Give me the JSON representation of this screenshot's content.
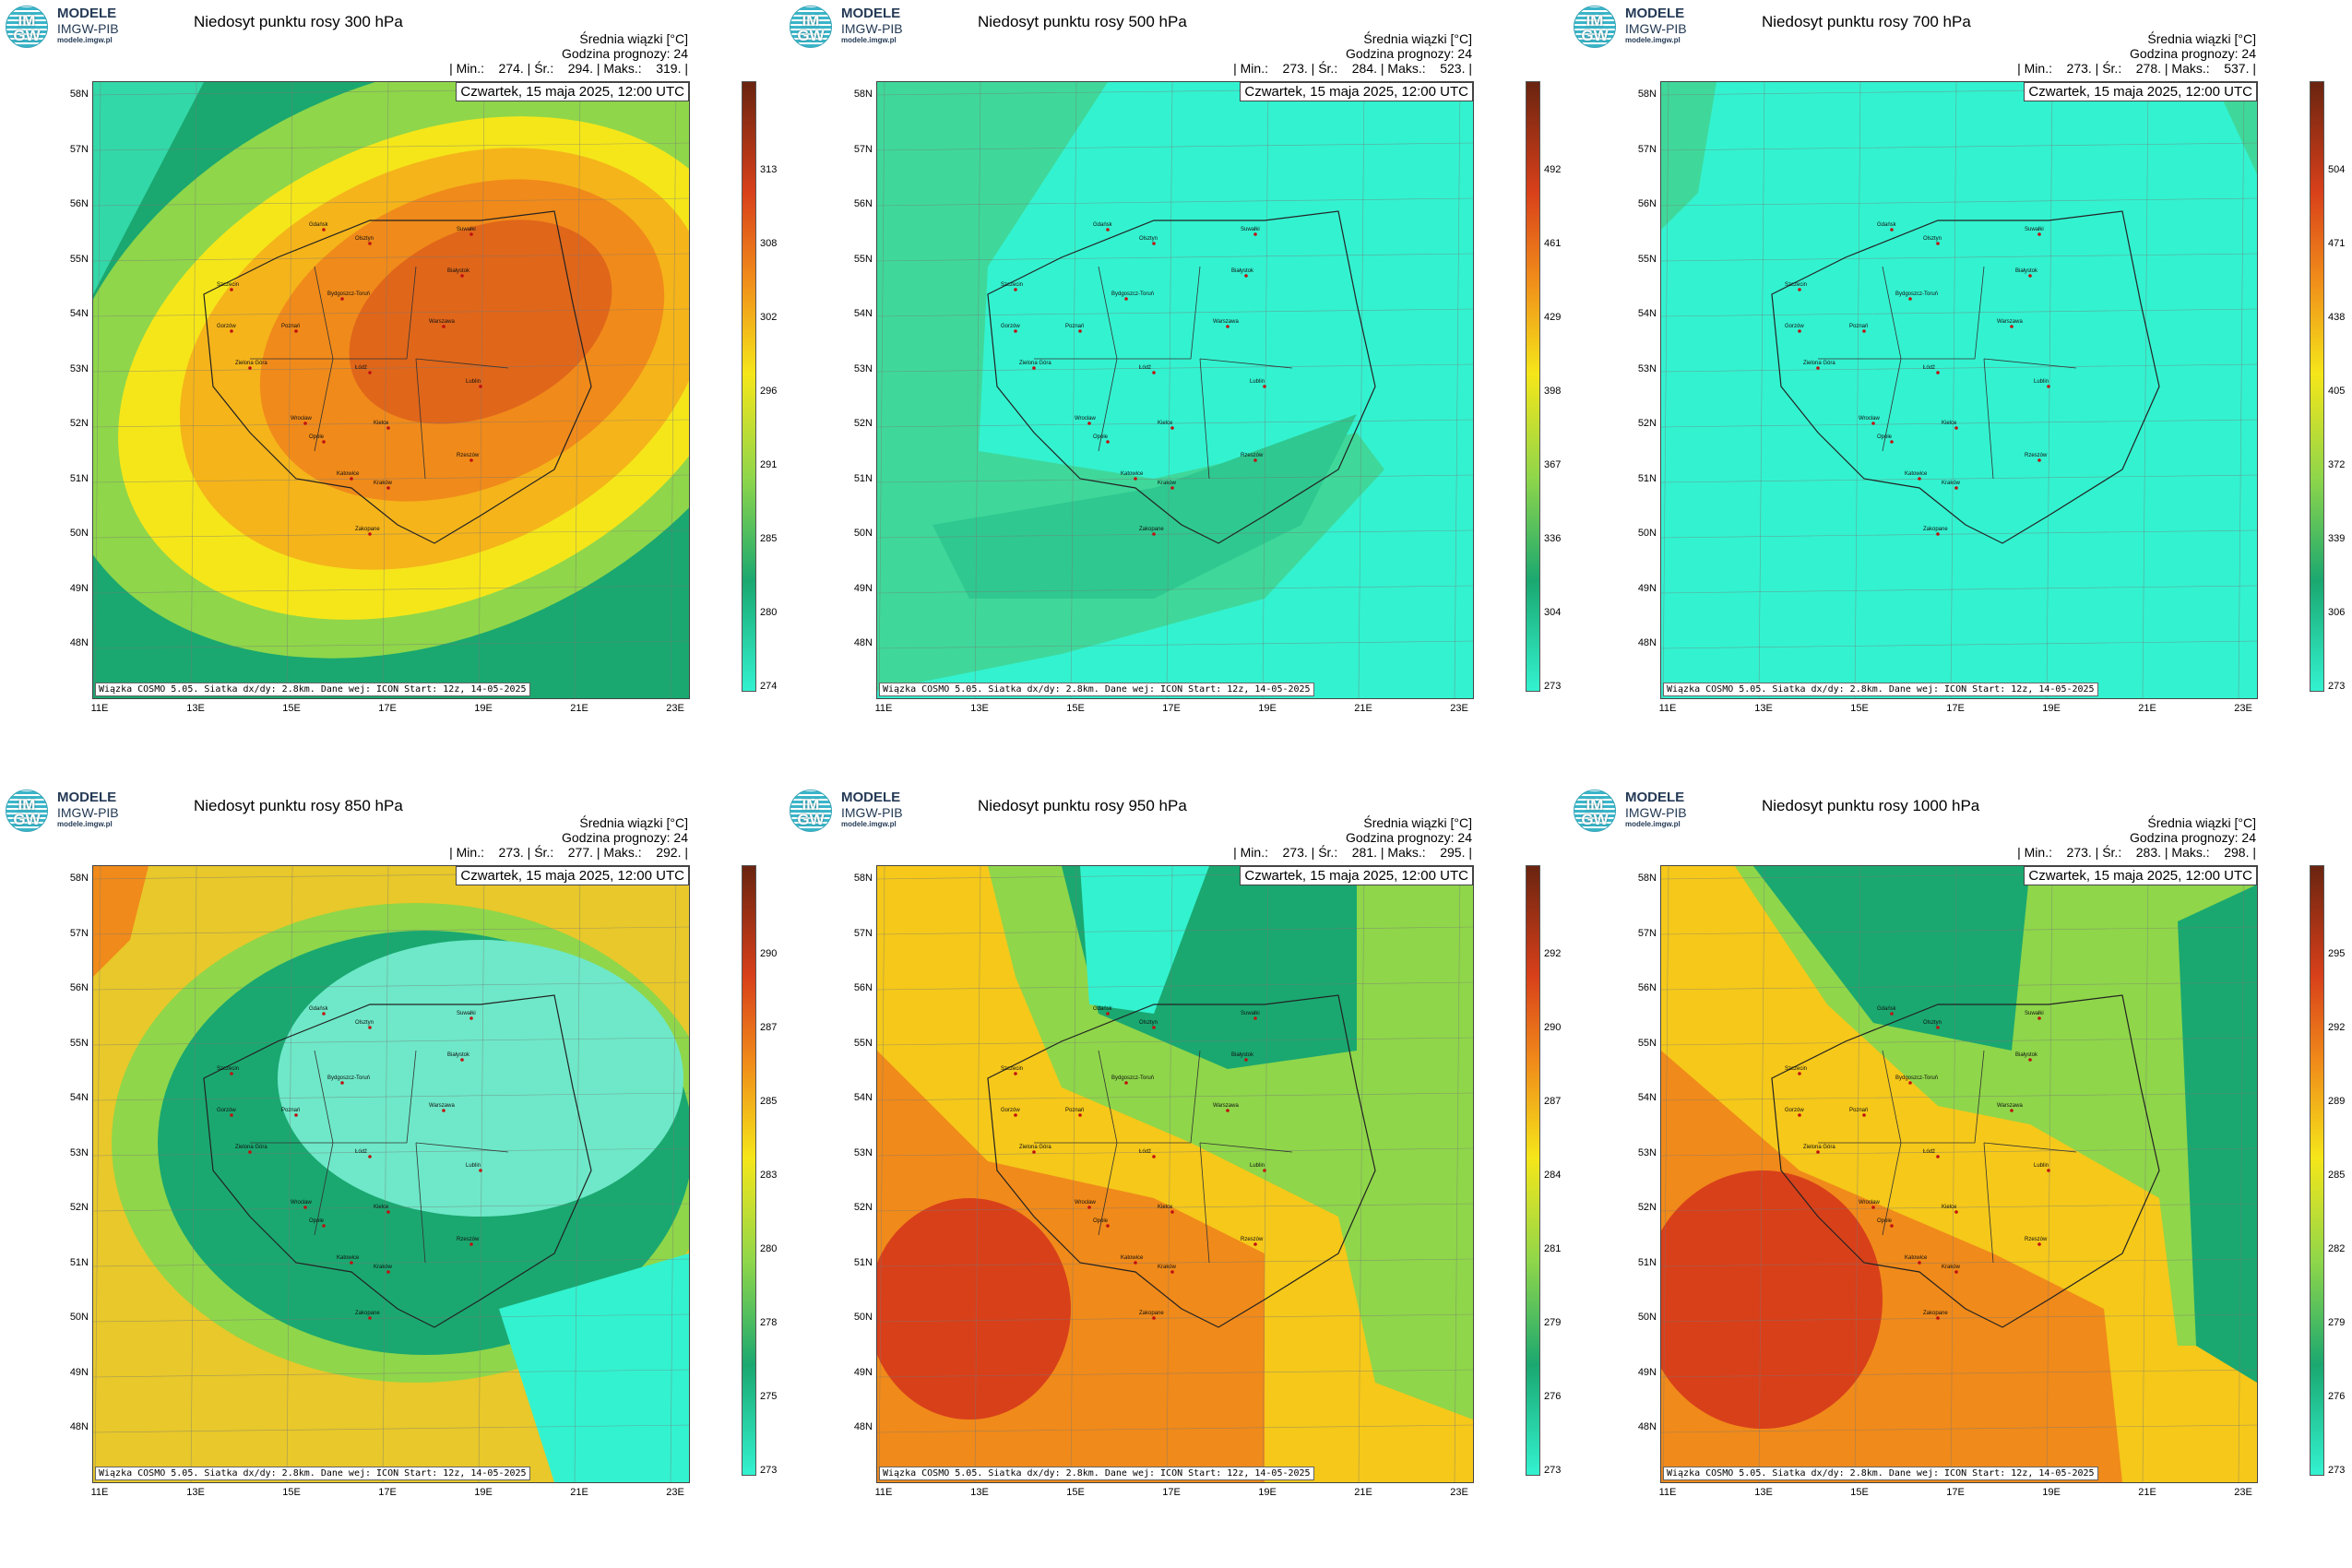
{
  "logo": {
    "badge_top": "IM",
    "badge_bottom": "GW",
    "title": "MODELE",
    "subtitle": "IMGW-PIB",
    "url": "modele.imgw.pl"
  },
  "common": {
    "subtitle": "Średnia wiązki [°C]",
    "forecast_hour": "Godzina prognozy: 24",
    "date": "Czwartek, 15 maja 2025, 12:00 UTC",
    "footer": "Wiązka COSMO 5.05. Siatka dx/dy: 2.8km. Dane wej: ICON Start: 12z, 14-05-2025",
    "lat_labels": [
      "58N",
      "57N",
      "56N",
      "55N",
      "54N",
      "53N",
      "52N",
      "51N",
      "50N",
      "49N",
      "48N"
    ],
    "lon_labels": [
      "11E",
      "13E",
      "15E",
      "17E",
      "19E",
      "21E",
      "23E"
    ]
  },
  "panels": [
    {
      "title": "Niedosyt punktu rosy 300 hPa",
      "stats": "| Min.:    274. | Śr.:    294. | Maks.:    319. |",
      "scale": [
        "313",
        "308",
        "302",
        "296",
        "291",
        "285",
        "280",
        "274"
      ],
      "field": "p300"
    },
    {
      "title": "Niedosyt punktu rosy 500 hPa",
      "stats": "| Min.:    273. | Śr.:    284. | Maks.:    523. |",
      "scale": [
        "492",
        "461",
        "429",
        "398",
        "367",
        "336",
        "304",
        "273"
      ],
      "field": "p500"
    },
    {
      "title": "Niedosyt punktu rosy 700 hPa",
      "stats": "| Min.:    273. | Śr.:    278. | Maks.:    537. |",
      "scale": [
        "504",
        "471",
        "438",
        "405",
        "372",
        "339",
        "306",
        "273"
      ],
      "field": "p700"
    },
    {
      "title": "Niedosyt punktu rosy 850 hPa",
      "stats": "| Min.:    273. | Śr.:    277. | Maks.:    292. |",
      "scale": [
        "290",
        "287",
        "285",
        "283",
        "280",
        "278",
        "275",
        "273"
      ],
      "field": "p850"
    },
    {
      "title": "Niedosyt punktu rosy 950 hPa",
      "stats": "| Min.:    273. | Śr.:    281. | Maks.:    295. |",
      "scale": [
        "292",
        "290",
        "287",
        "284",
        "281",
        "279",
        "276",
        "273"
      ],
      "field": "p950"
    },
    {
      "title": "Niedosyt punktu rosy 1000 hPa",
      "stats": "| Min.:    273. | Śr.:    283. | Maks.:    298. |",
      "scale": [
        "295",
        "292",
        "289",
        "285",
        "282",
        "279",
        "276",
        "273"
      ],
      "field": "p1000"
    }
  ],
  "cities": [
    "Gdańsk",
    "Olsztyn",
    "Białystok",
    "Szczecin",
    "Bydgoszcz-Toruń",
    "Gorzów",
    "Poznań",
    "Warszawa",
    "Zielona Góra",
    "Łódź",
    "Lublin",
    "Wrocław",
    "Opole",
    "Kielce",
    "Rzeszów",
    "Katowice",
    "Kraków",
    "Zakopane",
    "Suwałki"
  ],
  "colors": {
    "cyan": "#33f2d0",
    "green": "#1aa870",
    "yellow": "#f5e61a",
    "orange": "#f08a1a",
    "red": "#d8401a",
    "dark": "#6a2410"
  }
}
